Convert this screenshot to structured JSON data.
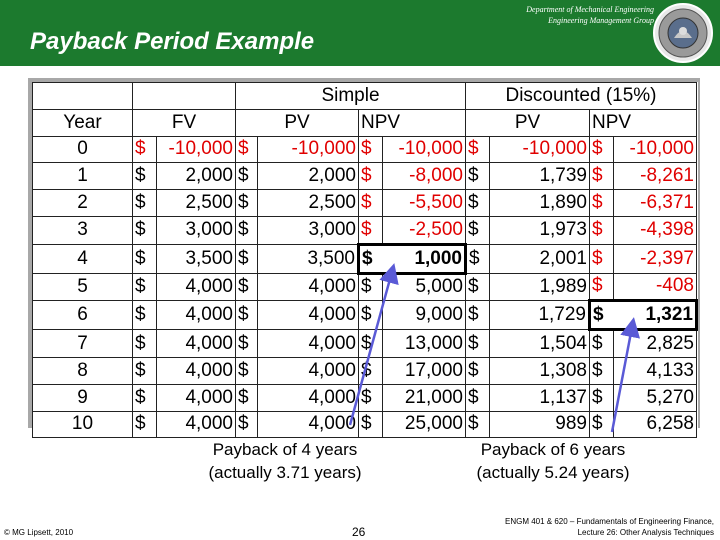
{
  "header": {
    "dept_line1": "Department of Mechanical Engineering",
    "dept_line2": "Engineering Management Group",
    "title": "Payback Period Example",
    "colors": {
      "band": "#1c7a2e",
      "title": "#ffffff"
    }
  },
  "table": {
    "group_simple": "Simple",
    "group_discounted": "Discounted (15%)",
    "col_year": "Year",
    "col_fv": "FV",
    "col_pv": "PV",
    "col_npv": "NPV",
    "currency": "$",
    "rows": [
      {
        "year": "0",
        "fv": "-10,000",
        "pv": "-10,000",
        "npv": "-10,000",
        "dpv": "-10,000",
        "dnpv": "-10,000"
      },
      {
        "year": "1",
        "fv": "2,000",
        "pv": "2,000",
        "npv": "-8,000",
        "dpv": "1,739",
        "dnpv": "-8,261"
      },
      {
        "year": "2",
        "fv": "2,500",
        "pv": "2,500",
        "npv": "-5,500",
        "dpv": "1,890",
        "dnpv": "-6,371"
      },
      {
        "year": "3",
        "fv": "3,000",
        "pv": "3,000",
        "npv": "-2,500",
        "dpv": "1,973",
        "dnpv": "-4,398"
      },
      {
        "year": "4",
        "fv": "3,500",
        "pv": "3,500",
        "npv": "1,000",
        "dpv": "2,001",
        "dnpv": "-2,397"
      },
      {
        "year": "5",
        "fv": "4,000",
        "pv": "4,000",
        "npv": "5,000",
        "dpv": "1,989",
        "dnpv": "-408"
      },
      {
        "year": "6",
        "fv": "4,000",
        "pv": "4,000",
        "npv": "9,000",
        "dpv": "1,729",
        "dnpv": "1,321"
      },
      {
        "year": "7",
        "fv": "4,000",
        "pv": "4,000",
        "npv": "13,000",
        "dpv": "1,504",
        "dnpv": "2,825"
      },
      {
        "year": "8",
        "fv": "4,000",
        "pv": "4,000",
        "npv": "17,000",
        "dpv": "1,308",
        "dnpv": "4,133"
      },
      {
        "year": "9",
        "fv": "4,000",
        "pv": "4,000",
        "npv": "21,000",
        "dpv": "1,137",
        "dnpv": "5,270"
      },
      {
        "year": "10",
        "fv": "4,000",
        "pv": "4,000",
        "npv": "25,000",
        "dpv": "989",
        "dnpv": "6,258"
      }
    ],
    "colors": {
      "negative": "#e00000"
    }
  },
  "notes": {
    "simple_line1": "Payback of 4 years",
    "simple_line2": "(actually 3.71 years)",
    "discounted_line1": "Payback of 6 years",
    "discounted_line2": "(actually 5.24 years)"
  },
  "footer": {
    "copyright": "© MG Lipsett, 2010",
    "page_number": "26",
    "course_line1": "ENGM 401 & 620 – Fundamentals of Engineering Finance,",
    "course_line2": "Lecture 26: Other Analysis Techniques"
  }
}
